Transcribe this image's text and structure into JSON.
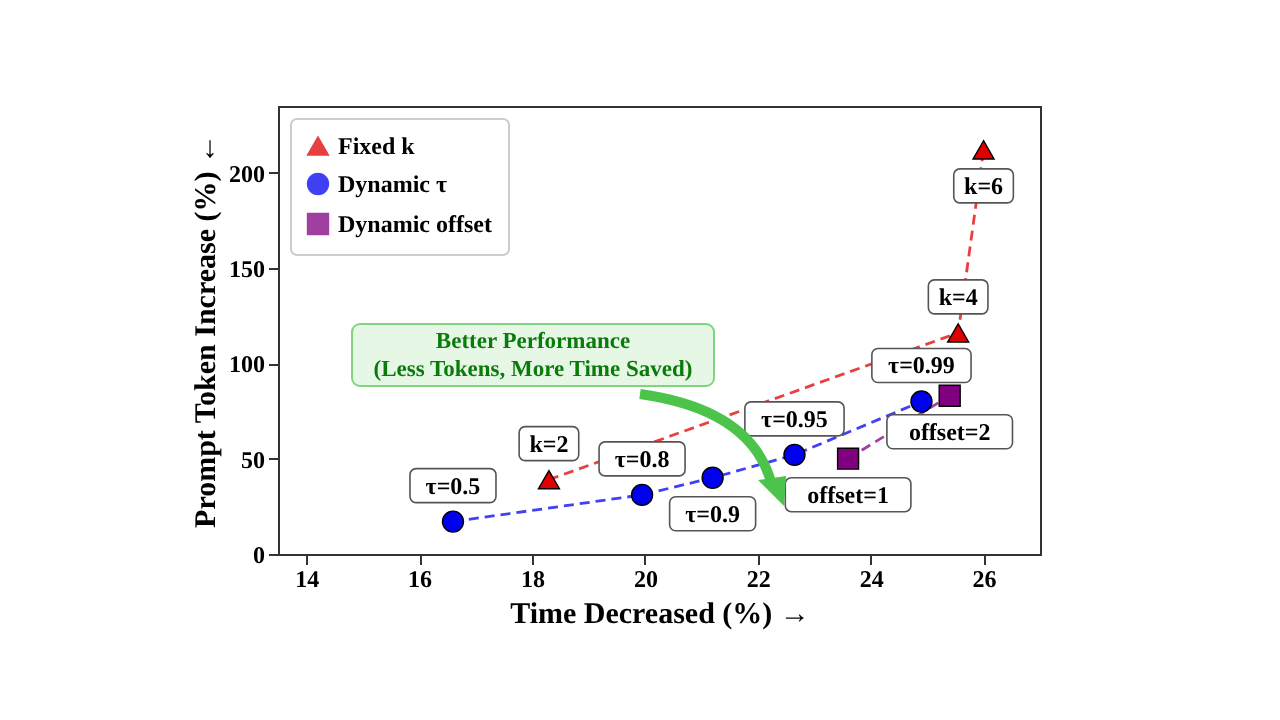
{
  "chart_data": {
    "type": "scatter",
    "xlabel": "Time Decreased (%) →",
    "ylabel": "Prompt Token Increase (%) ←",
    "series": [
      {
        "name": "Fixed k",
        "color": "#e00000",
        "marker": "triangle",
        "x": [
          18.3,
          25.55,
          26.0
        ],
        "values": [
          39,
          116,
          212
        ]
      },
      {
        "name": "Dynamic τ",
        "color": "#0000f0",
        "marker": "circle",
        "x": [
          16.6,
          19.95,
          21.2,
          22.65,
          24.9
        ],
        "values": [
          17,
          31,
          40,
          52,
          80
        ]
      },
      {
        "name": "Dynamic offset",
        "color": "#800080",
        "marker": "square",
        "x": [
          23.6,
          25.4
        ],
        "values": [
          50,
          83
        ]
      }
    ],
    "line_style": "dashed",
    "legend": "top left",
    "grid": false,
    "xlim": [
      13.5,
      27
    ],
    "xticks": [
      14,
      16,
      18,
      20,
      22,
      24,
      26
    ],
    "ylim": [
      0,
      235
    ],
    "yticks": [
      0,
      50,
      100,
      150,
      200
    ],
    "annotations": [
      {
        "text": "k=2",
        "x": 18.3,
        "y": 39
      },
      {
        "text": "k=4",
        "x": 25.55,
        "y": 116
      },
      {
        "text": "k=6",
        "x": 26.0,
        "y": 212
      },
      {
        "text": "τ=0.5",
        "x": 16.6,
        "y": 17
      },
      {
        "text": "τ=0.8",
        "x": 19.95,
        "y": 31
      },
      {
        "text": "τ=0.9",
        "x": 21.2,
        "y": 40
      },
      {
        "text": "τ=0.95",
        "x": 22.65,
        "y": 52
      },
      {
        "text": "τ=0.99",
        "x": 24.9,
        "y": 80
      },
      {
        "text": "offset=1",
        "x": 23.6,
        "y": 50
      },
      {
        "text": "offset=2",
        "x": 25.4,
        "y": 83
      },
      "Better Performance\n(Less Tokens, More Time Saved)"
    ]
  }
}
